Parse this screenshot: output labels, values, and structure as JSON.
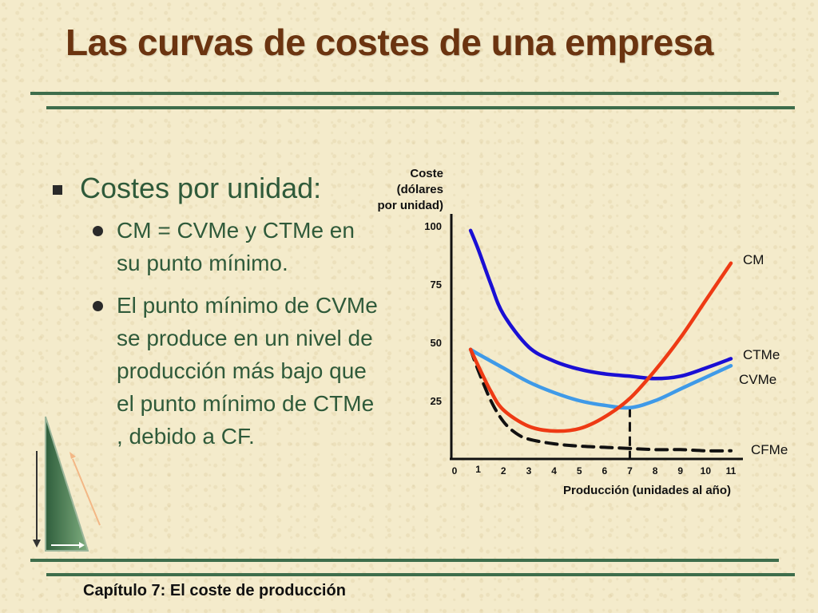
{
  "slide": {
    "title": "Las curvas de costes de una empresa",
    "bullet_main": "Costes por unidad:",
    "sub_bullets": [
      "CM = CVMe y CTMe en su punto mínimo.",
      "El punto mínimo de CVMe se produce en un nivel de producción más bajo que el punto mínimo de CTMe , debido a CF."
    ],
    "footer": "Capítulo 7: El coste de producción"
  },
  "chart_data": {
    "type": "line",
    "ylabel": [
      "Coste",
      "(dólares",
      "por unidad)"
    ],
    "xlabel": "Producción (unidades al año)",
    "xlim": [
      0,
      11
    ],
    "ylim": [
      0,
      100
    ],
    "x_ticks": [
      "0",
      "1",
      "2",
      "3",
      "4",
      "5",
      "6",
      "7",
      "8",
      "9",
      "10",
      "11"
    ],
    "y_ticks": [
      "25",
      "50",
      "75",
      "100"
    ],
    "series": [
      {
        "name": "CM",
        "color": "#ee3a14",
        "dashed": false,
        "points": [
          [
            0.7,
            47
          ],
          [
            1,
            40
          ],
          [
            1.5,
            29
          ],
          [
            2,
            21
          ],
          [
            3,
            14
          ],
          [
            4,
            12
          ],
          [
            5,
            13
          ],
          [
            6,
            18
          ],
          [
            7,
            26
          ],
          [
            8,
            38
          ],
          [
            9,
            52
          ],
          [
            10,
            68
          ],
          [
            11,
            84
          ]
        ]
      },
      {
        "name": "CTMe",
        "color": "#1a0fd4",
        "dashed": false,
        "points": [
          [
            0.7,
            98
          ],
          [
            1,
            90
          ],
          [
            1.5,
            75
          ],
          [
            2,
            62
          ],
          [
            3,
            48
          ],
          [
            4,
            42
          ],
          [
            5,
            38.5
          ],
          [
            6,
            36.5
          ],
          [
            7,
            35.5
          ],
          [
            8,
            34.5
          ],
          [
            9,
            35.5
          ],
          [
            10,
            39
          ],
          [
            11,
            43
          ]
        ]
      },
      {
        "name": "CVMe",
        "color": "#3f9ae8",
        "dashed": false,
        "points": [
          [
            0.7,
            47
          ],
          [
            1,
            45
          ],
          [
            2,
            39
          ],
          [
            3,
            33
          ],
          [
            4,
            28.5
          ],
          [
            5,
            25
          ],
          [
            6,
            23
          ],
          [
            7,
            22
          ],
          [
            8,
            25
          ],
          [
            9,
            30
          ],
          [
            10,
            35
          ],
          [
            11,
            40
          ]
        ]
      },
      {
        "name": "CFMe",
        "color": "#111111",
        "dashed": true,
        "points": [
          [
            0.7,
            47
          ],
          [
            1,
            38
          ],
          [
            1.5,
            25
          ],
          [
            2,
            16
          ],
          [
            2.5,
            11
          ],
          [
            3,
            8.5
          ],
          [
            4,
            6.5
          ],
          [
            5,
            5.5
          ],
          [
            6,
            5
          ],
          [
            7,
            4.5
          ],
          [
            8,
            4
          ],
          [
            9,
            4
          ],
          [
            10,
            3.5
          ],
          [
            11,
            3.5
          ]
        ]
      }
    ],
    "vertical_marker": {
      "x": 7,
      "y": 22,
      "dashed": true
    }
  }
}
